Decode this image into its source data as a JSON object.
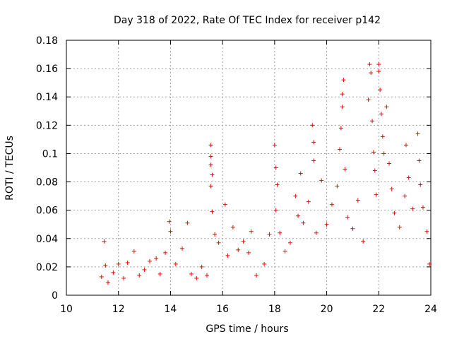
{
  "chart_data": {
    "type": "scatter",
    "title": "Day 318 of 2022, Rate Of TEC Index for receiver p142",
    "xlabel": "GPS time / hours",
    "ylabel": "ROTI / TECUs",
    "xlim": [
      10,
      24
    ],
    "ylim": [
      0,
      0.18
    ],
    "x_ticks": [
      10,
      12,
      14,
      16,
      18,
      20,
      22,
      24
    ],
    "x_tick_labels": [
      "10",
      "12",
      "14",
      "16",
      "18",
      "20",
      "22",
      "24"
    ],
    "y_ticks": [
      0,
      0.02,
      0.04,
      0.06,
      0.08,
      0.1,
      0.12,
      0.14,
      0.16,
      0.18
    ],
    "y_tick_labels": [
      "0",
      "0.02",
      "0.04",
      "0.06",
      "0.08",
      "0.1",
      "0.12",
      "0.14",
      "0.16",
      "0.18"
    ],
    "grid": true,
    "marker": "+",
    "marker_color": "#ff0000",
    "series": [
      {
        "values": [
          [
            11.35,
            0.013
          ],
          [
            11.45,
            0.038
          ],
          [
            11.5,
            0.021
          ],
          [
            11.6,
            0.009
          ],
          [
            11.8,
            0.016
          ],
          [
            12.0,
            0.022
          ],
          [
            12.2,
            0.012
          ],
          [
            12.35,
            0.023
          ],
          [
            12.6,
            0.031
          ],
          [
            12.8,
            0.014
          ],
          [
            13.0,
            0.018
          ],
          [
            13.2,
            0.024
          ],
          [
            13.45,
            0.026
          ],
          [
            13.6,
            0.015
          ],
          [
            13.8,
            0.03
          ],
          [
            13.95,
            0.052
          ],
          [
            14.0,
            0.045
          ],
          [
            14.2,
            0.022
          ],
          [
            14.45,
            0.033
          ],
          [
            14.65,
            0.051
          ],
          [
            14.8,
            0.015
          ],
          [
            15.0,
            0.012
          ],
          [
            15.2,
            0.02
          ],
          [
            15.4,
            0.014
          ],
          [
            15.55,
            0.106
          ],
          [
            15.55,
            0.098
          ],
          [
            15.55,
            0.092
          ],
          [
            15.6,
            0.085
          ],
          [
            15.55,
            0.077
          ],
          [
            15.6,
            0.059
          ],
          [
            15.7,
            0.043
          ],
          [
            15.85,
            0.037
          ],
          [
            16.1,
            0.064
          ],
          [
            16.2,
            0.028
          ],
          [
            16.4,
            0.048
          ],
          [
            16.6,
            0.032
          ],
          [
            16.8,
            0.038
          ],
          [
            17.0,
            0.03
          ],
          [
            17.1,
            0.045
          ],
          [
            17.3,
            0.014
          ],
          [
            17.6,
            0.022
          ],
          [
            17.8,
            0.043
          ],
          [
            18.0,
            0.106
          ],
          [
            18.05,
            0.09
          ],
          [
            18.1,
            0.078
          ],
          [
            18.05,
            0.06
          ],
          [
            18.2,
            0.044
          ],
          [
            18.4,
            0.031
          ],
          [
            18.6,
            0.037
          ],
          [
            18.8,
            0.07
          ],
          [
            18.9,
            0.056
          ],
          [
            19.0,
            0.086
          ],
          [
            19.1,
            0.051
          ],
          [
            19.3,
            0.066
          ],
          [
            19.45,
            0.12
          ],
          [
            19.5,
            0.108
          ],
          [
            19.5,
            0.095
          ],
          [
            19.6,
            0.044
          ],
          [
            19.8,
            0.081
          ],
          [
            20.0,
            0.05
          ],
          [
            20.2,
            0.064
          ],
          [
            20.4,
            0.077
          ],
          [
            20.5,
            0.103
          ],
          [
            20.55,
            0.118
          ],
          [
            20.6,
            0.142
          ],
          [
            20.65,
            0.152
          ],
          [
            20.6,
            0.133
          ],
          [
            20.7,
            0.089
          ],
          [
            20.8,
            0.055
          ],
          [
            21.0,
            0.047
          ],
          [
            21.2,
            0.067
          ],
          [
            21.4,
            0.038
          ],
          [
            21.6,
            0.138
          ],
          [
            21.65,
            0.163
          ],
          [
            21.7,
            0.157
          ],
          [
            21.75,
            0.123
          ],
          [
            21.8,
            0.101
          ],
          [
            21.85,
            0.088
          ],
          [
            21.9,
            0.071
          ],
          [
            22.0,
            0.163
          ],
          [
            22.0,
            0.158
          ],
          [
            22.05,
            0.145
          ],
          [
            22.1,
            0.128
          ],
          [
            22.15,
            0.112
          ],
          [
            22.2,
            0.1
          ],
          [
            22.3,
            0.133
          ],
          [
            22.4,
            0.093
          ],
          [
            22.5,
            0.075
          ],
          [
            22.6,
            0.058
          ],
          [
            22.8,
            0.048
          ],
          [
            23.0,
            0.07
          ],
          [
            23.05,
            0.106
          ],
          [
            23.15,
            0.083
          ],
          [
            23.3,
            0.061
          ],
          [
            23.5,
            0.114
          ],
          [
            23.55,
            0.095
          ],
          [
            23.6,
            0.078
          ],
          [
            23.7,
            0.062
          ],
          [
            23.85,
            0.045
          ],
          [
            23.95,
            0.022
          ]
        ]
      }
    ]
  }
}
